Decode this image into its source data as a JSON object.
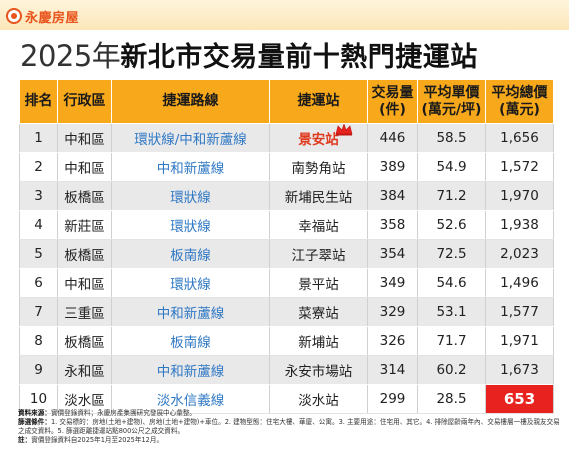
{
  "brand": {
    "logo_text": "永慶房屋",
    "accent": "#e8541c"
  },
  "title": {
    "year": "2025年",
    "main": "新北市交易量前十熱門捷運站"
  },
  "table": {
    "headers": {
      "rank": "排名",
      "district": "行政區",
      "line": "捷運路線",
      "station": "捷運站",
      "volume_1": "交易量",
      "volume_2": "(件)",
      "unit_price_1": "平均單價",
      "unit_price_2": "(萬元/坪)",
      "total_price_1": "平均總價",
      "total_price_2": "(萬元)"
    },
    "header_color": "#f7a81b",
    "rows": [
      {
        "rank": "1",
        "district": "中和區",
        "line": "環狀線/中和新蘆線",
        "station": "景安站",
        "volume": "446",
        "unit_price": "58.5",
        "total_price": "1,656"
      },
      {
        "rank": "2",
        "district": "中和區",
        "line": "中和新蘆線",
        "station": "南勢角站",
        "volume": "389",
        "unit_price": "54.9",
        "total_price": "1,572"
      },
      {
        "rank": "3",
        "district": "板橋區",
        "line": "環狀線",
        "station": "新埔民生站",
        "volume": "384",
        "unit_price": "71.2",
        "total_price": "1,970"
      },
      {
        "rank": "4",
        "district": "新莊區",
        "line": "環狀線",
        "station": "幸福站",
        "volume": "358",
        "unit_price": "52.6",
        "total_price": "1,938"
      },
      {
        "rank": "5",
        "district": "板橋區",
        "line": "板南線",
        "station": "江子翠站",
        "volume": "354",
        "unit_price": "72.5",
        "total_price": "2,023"
      },
      {
        "rank": "6",
        "district": "中和區",
        "line": "環狀線",
        "station": "景平站",
        "volume": "349",
        "unit_price": "54.6",
        "total_price": "1,496"
      },
      {
        "rank": "7",
        "district": "三重區",
        "line": "中和新蘆線",
        "station": "菜寮站",
        "volume": "329",
        "unit_price": "53.1",
        "total_price": "1,577"
      },
      {
        "rank": "8",
        "district": "板橋區",
        "line": "板南線",
        "station": "新埔站",
        "volume": "326",
        "unit_price": "71.7",
        "total_price": "1,971"
      },
      {
        "rank": "9",
        "district": "永和區",
        "line": "中和新蘆線",
        "station": "永安市場站",
        "volume": "314",
        "unit_price": "60.2",
        "total_price": "1,673"
      },
      {
        "rank": "10",
        "district": "淡水區",
        "line": "淡水信義線",
        "station": "淡水站",
        "volume": "299",
        "unit_price": "28.5",
        "total_price": "653"
      }
    ],
    "highlight_color": "#e8221e",
    "station_highlight_color": "#e03a1e"
  },
  "notes": {
    "source_label": "資料來源：",
    "source_text": "實價登錄資料；永慶房產集團研究發展中心彙整。",
    "filter_label": "篩選條件：",
    "filter_text": "1. 交易標的：房地(土地+建物)、房地(土地+建物)+車位。2. 建物型態：住宅大樓、華廈、公寓。3. 主要用途：住宅用、其它。4. 排除屋齡兩年內、交易樓層一樓及親友交易之成交資料。5. 篩選距離捷運站點800公尺之成交資料。",
    "note_label": "註：",
    "note_text": "實價登錄資料自2025年1月至2025年12月。"
  }
}
